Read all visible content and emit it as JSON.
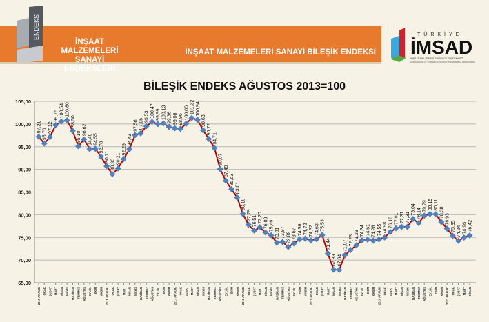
{
  "header": {
    "logo_text": "ENDEKS",
    "brand_line1": "İNŞAAT MALZEMELERİ",
    "brand_line2": "SANAYİ ENDEKSLERİ",
    "subtitle": "İNŞAAT MALZEMELERİ SANAYİ BİLEŞİK ENDEKSİ",
    "partner_logo": {
      "top": "TÜRKİYE",
      "name": "İMSAD",
      "line1": "İNŞAAT MALZEMESİ SANAYİCİLERİ DERNEĞİ",
      "line2": "ASSOCIATION OF TURKISH CONSTRUCTION MATERIAL PRODUCERS"
    }
  },
  "colors": {
    "band": "#e87a2e",
    "line": "#c00000",
    "marker": "#4f81bd"
  },
  "chart_data": {
    "type": "line",
    "title": "BİLEŞİK ENDEKS AĞUSTOS 2013=100",
    "xlabel": "",
    "ylabel": "",
    "ylim": [
      65,
      105
    ],
    "yticks": [
      "65,00",
      "70,00",
      "75,00",
      "80,00",
      "85,00",
      "90,00",
      "95,00",
      "100,00",
      "105,00"
    ],
    "grid": true,
    "categories": [
      "2015 ARALIK",
      "OCAK",
      "ŞUBAT",
      "MART",
      "NİSAN",
      "MAYIS",
      "HAZİRAN",
      "TEMMUZ",
      "AĞUSTOS",
      "EYLÜL",
      "EKİM",
      "KASIM",
      "2016 ARALIK",
      "OCAK",
      "ŞUBAT",
      "MART",
      "NİSAN",
      "MAYIS",
      "HAZİRAN",
      "TEMMUZ",
      "AĞUSTOS",
      "EYLÜL",
      "EKİM",
      "KASIM",
      "2017 ARALIK",
      "OCAK",
      "ŞUBAT",
      "MART",
      "NİSAN",
      "MAYIS",
      "HAZİRAN",
      "TEMMUZ",
      "AĞUSTOS",
      "EYLÜL",
      "EKİM",
      "KASIM",
      "2018 ARALIK",
      "OCAK",
      "ŞUBAT",
      "MART",
      "NİSAN",
      "MAYIS",
      "HAZİRAN",
      "TEMMUZ",
      "AĞUSTOS",
      "EYLÜL",
      "EKİM",
      "KASIM",
      "2019 ARALIK",
      "OCAK",
      "ŞUBAT",
      "MART",
      "NİSAN",
      "MAYIS",
      "HAZİRAN",
      "TEMMUZ",
      "AĞUSTOS",
      "EYLÜL",
      "EKİM",
      "KASIM",
      "2020 ARALIK",
      "OCAK",
      "ŞUBAT",
      "MART",
      "NİSAN",
      "MAYIS",
      "HAZİRAN",
      "TEMMUZ",
      "AĞUSTOS",
      "EYLÜL",
      "EKİM",
      "KASIM",
      "2021 ARALIK",
      "OCAK",
      "ŞUBAT",
      "MART",
      "NİSAN"
    ],
    "values": [
      97.21,
      95.7,
      97.12,
      99.76,
      100.54,
      100.8,
      98.5,
      95.1,
      96.62,
      94.49,
      94.55,
      92.78,
      90.71,
      88.96,
      90.21,
      92.29,
      94.43,
      97.56,
      97.95,
      99.53,
      100.47,
      99.99,
      100.13,
      99.36,
      99.06,
      98.96,
      100.06,
      101.32,
      100.94,
      98.63,
      96.72,
      94.71,
      90.07,
      87.49,
      85.63,
      83.81,
      80.19,
      77.79,
      76.51,
      77.2,
      76.09,
      75.46,
      73.81,
      73.97,
      72.89,
      73.67,
      74.56,
      74.72,
      74.32,
      74.63,
      75.53,
      71.44,
      67.89,
      67.84,
      71.07,
      72.23,
      73.23,
      74.34,
      74.51,
      74.28,
      74.55,
      74.98,
      76.18,
      77.01,
      77.31,
      77.31,
      79.04,
      78.14,
      79.79,
      80.15,
      80.11,
      78.38,
      76.93,
      75.35,
      74.24,
      74.96,
      75.42
    ]
  }
}
